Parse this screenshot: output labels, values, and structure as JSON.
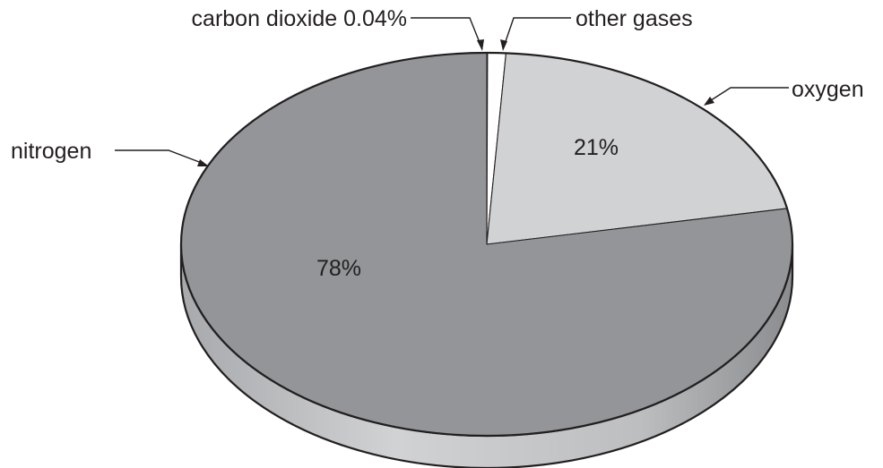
{
  "chart_data": {
    "type": "pie",
    "title": "",
    "slices": [
      {
        "name": "nitrogen",
        "value": 78,
        "label": "nitrogen",
        "value_label": "78%",
        "color": "#939598"
      },
      {
        "name": "oxygen",
        "value": 21,
        "label": "oxygen",
        "value_label": "21%",
        "color": "#d1d2d4"
      },
      {
        "name": "other gases",
        "value": 0.96,
        "label": "other gases",
        "value_label": "",
        "color": "#ffffff"
      },
      {
        "name": "carbon dioxide",
        "value": 0.04,
        "label": "carbon dioxide 0.04%",
        "value_label": "",
        "color": "#58595b"
      }
    ],
    "style": "3d-tilted",
    "legend": "none",
    "outline_color": "#231f20",
    "side_color": "#bcbec0"
  }
}
